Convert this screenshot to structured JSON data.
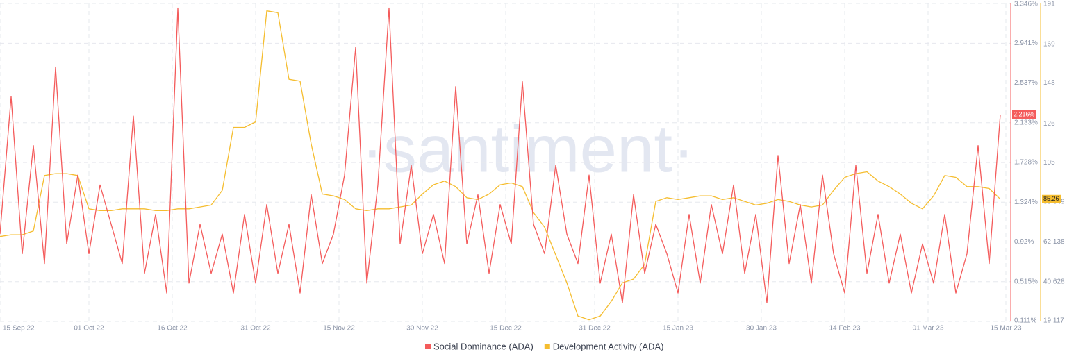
{
  "chart_data": {
    "type": "line",
    "watermark": "·santiment·",
    "x": [
      "2022-09-15",
      "2022-09-17",
      "2022-09-19",
      "2022-09-21",
      "2022-09-23",
      "2022-09-25",
      "2022-09-27",
      "2022-09-29",
      "2022-10-01",
      "2022-10-03",
      "2022-10-05",
      "2022-10-07",
      "2022-10-09",
      "2022-10-11",
      "2022-10-13",
      "2022-10-15",
      "2022-10-17",
      "2022-10-19",
      "2022-10-21",
      "2022-10-23",
      "2022-10-25",
      "2022-10-27",
      "2022-10-29",
      "2022-10-31",
      "2022-11-02",
      "2022-11-04",
      "2022-11-06",
      "2022-11-08",
      "2022-11-10",
      "2022-11-12",
      "2022-11-14",
      "2022-11-16",
      "2022-11-18",
      "2022-11-20",
      "2022-11-22",
      "2022-11-24",
      "2022-11-26",
      "2022-11-28",
      "2022-11-30",
      "2022-12-02",
      "2022-12-04",
      "2022-12-06",
      "2022-12-08",
      "2022-12-10",
      "2022-12-12",
      "2022-12-14",
      "2022-12-16",
      "2022-12-18",
      "2022-12-20",
      "2022-12-22",
      "2022-12-24",
      "2022-12-26",
      "2022-12-28",
      "2022-12-30",
      "2023-01-01",
      "2023-01-03",
      "2023-01-05",
      "2023-01-07",
      "2023-01-09",
      "2023-01-11",
      "2023-01-13",
      "2023-01-15",
      "2023-01-17",
      "2023-01-19",
      "2023-01-21",
      "2023-01-23",
      "2023-01-25",
      "2023-01-27",
      "2023-01-29",
      "2023-01-31",
      "2023-02-02",
      "2023-02-04",
      "2023-02-06",
      "2023-02-08",
      "2023-02-10",
      "2023-02-12",
      "2023-02-14",
      "2023-02-16",
      "2023-02-18",
      "2023-02-20",
      "2023-02-22",
      "2023-02-24",
      "2023-02-26",
      "2023-02-28",
      "2023-03-02",
      "2023-03-04",
      "2023-03-06",
      "2023-03-08",
      "2023-03-10",
      "2023-03-12",
      "2023-03-14"
    ],
    "xlim": [
      "2022-09-15",
      "2023-03-15"
    ],
    "xticks": [
      {
        "value": "2022-09-15",
        "label": "15 Sep 22"
      },
      {
        "value": "2022-10-01",
        "label": "01 Oct 22"
      },
      {
        "value": "2022-10-16",
        "label": "16 Oct 22"
      },
      {
        "value": "2022-10-31",
        "label": "31 Oct 22"
      },
      {
        "value": "2022-11-15",
        "label": "15 Nov 22"
      },
      {
        "value": "2022-11-30",
        "label": "30 Nov 22"
      },
      {
        "value": "2022-12-15",
        "label": "15 Dec 22"
      },
      {
        "value": "2022-12-31",
        "label": "31 Dec 22"
      },
      {
        "value": "2023-01-15",
        "label": "15 Jan 23"
      },
      {
        "value": "2023-01-30",
        "label": "30 Jan 23"
      },
      {
        "value": "2023-02-14",
        "label": "14 Feb 23"
      },
      {
        "value": "2023-03-01",
        "label": "01 Mar 23"
      },
      {
        "value": "2023-03-15",
        "label": "15 Mar 23"
      }
    ],
    "ylim": [
      0.111,
      3.346
    ],
    "yticks": [
      {
        "value": 0.111,
        "label": "0.111%"
      },
      {
        "value": 0.515,
        "label": "0.515%"
      },
      {
        "value": 0.92,
        "label": "0.92%"
      },
      {
        "value": 1.324,
        "label": "1.324%"
      },
      {
        "value": 1.728,
        "label": "1.728%"
      },
      {
        "value": 2.133,
        "label": "2.133%"
      },
      {
        "value": 2.537,
        "label": "2.537%"
      },
      {
        "value": 2.941,
        "label": "2.941%"
      },
      {
        "value": 3.346,
        "label": "3.346%"
      }
    ],
    "y2lim": [
      19.117,
      191
    ],
    "y2ticks": [
      19.117,
      40.628,
      62.138,
      83.649,
      105,
      126,
      148,
      169,
      191
    ],
    "grid": true,
    "series": [
      {
        "name": "Social Dominance (ADA)",
        "color": "#f45b5b",
        "last_label": "2.216%",
        "values": [
          1.0,
          2.4,
          0.8,
          1.9,
          0.7,
          2.7,
          0.9,
          1.6,
          0.8,
          1.5,
          1.1,
          0.7,
          2.2,
          0.6,
          1.2,
          0.4,
          3.3,
          0.5,
          1.1,
          0.6,
          1.0,
          0.4,
          1.2,
          0.5,
          1.3,
          0.6,
          1.1,
          0.4,
          1.4,
          0.7,
          1.0,
          1.6,
          2.9,
          0.5,
          1.5,
          3.3,
          0.9,
          1.7,
          0.8,
          1.2,
          0.7,
          2.5,
          0.9,
          1.4,
          0.6,
          1.3,
          0.9,
          2.55,
          1.1,
          0.8,
          1.7,
          1.0,
          0.7,
          1.6,
          0.5,
          1.0,
          0.3,
          1.4,
          0.6,
          1.1,
          0.8,
          0.4,
          1.2,
          0.5,
          1.3,
          0.8,
          1.5,
          0.6,
          1.2,
          0.3,
          1.8,
          0.7,
          1.3,
          0.5,
          1.6,
          0.8,
          0.4,
          1.7,
          0.6,
          1.2,
          0.5,
          1.0,
          0.4,
          0.9,
          0.5,
          1.2,
          0.4,
          0.8,
          1.9,
          0.7,
          2.216
        ]
      },
      {
        "name": "Development Activity (ADA)",
        "color": "#f5bd2f",
        "axis": "y2",
        "last_label": "85.26",
        "values": [
          65,
          66,
          66,
          68,
          98,
          99,
          99,
          98,
          80,
          79,
          79,
          80,
          80,
          80,
          79,
          79,
          80,
          80,
          81,
          82,
          90,
          124,
          124,
          127,
          187,
          186,
          150,
          149,
          115,
          88,
          87,
          85,
          80,
          79,
          80,
          80,
          81,
          82,
          88,
          93,
          95,
          92,
          86,
          85,
          88,
          93,
          94,
          92,
          78,
          70,
          55,
          40,
          22,
          20,
          22,
          30,
          40,
          42,
          50,
          84,
          86,
          85,
          86,
          87,
          87,
          85,
          86,
          84,
          82,
          83,
          85,
          84,
          82,
          81,
          82,
          90,
          97,
          99,
          100,
          95,
          92,
          88,
          83,
          80,
          87,
          98,
          97,
          92,
          92,
          91,
          85.26
        ]
      }
    ],
    "legend": "bottom"
  }
}
